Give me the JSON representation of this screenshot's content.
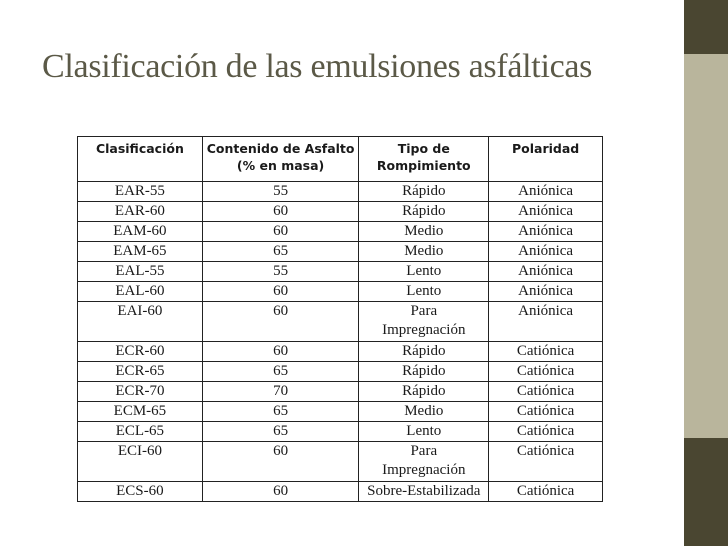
{
  "slide": {
    "title": "Clasificación de las emulsiones asfálticas"
  },
  "table": {
    "headers": [
      {
        "line1": "Clasificación",
        "line2": ""
      },
      {
        "line1": "Contenido de Asfalto",
        "line2": "(% en masa)"
      },
      {
        "line1": "Tipo de",
        "line2": "Rompimiento"
      },
      {
        "line1": "Polaridad",
        "line2": ""
      }
    ],
    "rows": [
      {
        "clasificacion": "EAR-55",
        "contenido": "55",
        "tipo": "Rápido",
        "tipo2": "",
        "polaridad": "Aniónica"
      },
      {
        "clasificacion": "EAR-60",
        "contenido": "60",
        "tipo": "Rápido",
        "tipo2": "",
        "polaridad": "Aniónica"
      },
      {
        "clasificacion": "EAM-60",
        "contenido": "60",
        "tipo": "Medio",
        "tipo2": "",
        "polaridad": "Aniónica"
      },
      {
        "clasificacion": "EAM-65",
        "contenido": "65",
        "tipo": "Medio",
        "tipo2": "",
        "polaridad": "Aniónica"
      },
      {
        "clasificacion": "EAL-55",
        "contenido": "55",
        "tipo": "Lento",
        "tipo2": "",
        "polaridad": "Aniónica"
      },
      {
        "clasificacion": "EAL-60",
        "contenido": "60",
        "tipo": "Lento",
        "tipo2": "",
        "polaridad": "Aniónica"
      },
      {
        "clasificacion": "EAI-60",
        "contenido": "60",
        "tipo": "Para",
        "tipo2": "Impregnación",
        "polaridad": "Aniónica"
      },
      {
        "clasificacion": "ECR-60",
        "contenido": "60",
        "tipo": "Rápido",
        "tipo2": "",
        "polaridad": "Catiónica"
      },
      {
        "clasificacion": "ECR-65",
        "contenido": "65",
        "tipo": "Rápido",
        "tipo2": "",
        "polaridad": "Catiónica"
      },
      {
        "clasificacion": "ECR-70",
        "contenido": "70",
        "tipo": "Rápido",
        "tipo2": "",
        "polaridad": "Catiónica"
      },
      {
        "clasificacion": "ECM-65",
        "contenido": "65",
        "tipo": "Medio",
        "tipo2": "",
        "polaridad": "Catiónica"
      },
      {
        "clasificacion": "ECL-65",
        "contenido": "65",
        "tipo": "Lento",
        "tipo2": "",
        "polaridad": "Catiónica"
      },
      {
        "clasificacion": "ECI-60",
        "contenido": "60",
        "tipo": "Para",
        "tipo2": "Impregnación",
        "polaridad": "Catiónica"
      },
      {
        "clasificacion": "ECS-60",
        "contenido": "60",
        "tipo": "Sobre-Estabilizada",
        "tipo2": "",
        "polaridad": "Catiónica"
      }
    ]
  },
  "colors": {
    "title": "#5b5947",
    "side_bar": "#b9b59c",
    "side_bar_dark": "#4a4631"
  }
}
